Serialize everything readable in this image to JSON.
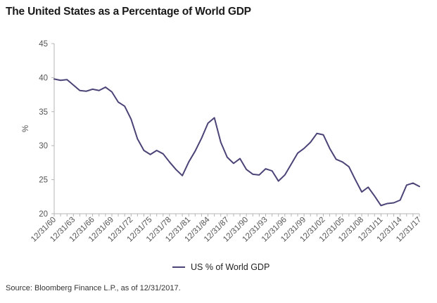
{
  "chart_data": {
    "type": "line",
    "title": "The United States as a Percentage of World GDP",
    "source": "Source: Bloomberg Finance L.P., as of 12/31/2017.",
    "xlabel": "",
    "ylabel": "%",
    "ylim": [
      20,
      45
    ],
    "yticks": [
      20,
      25,
      30,
      35,
      40,
      45
    ],
    "grid": false,
    "legend_position": "bottom-center",
    "x_tick_labels": [
      "12/31/60",
      "12/31/63",
      "12/31/66",
      "12/31/69",
      "12/31/72",
      "12/31/75",
      "12/31/78",
      "12/31/81",
      "12/31/84",
      "12/31/87",
      "12/31/90",
      "12/31/93",
      "12/31/96",
      "12/31/99",
      "12/31/02",
      "12/31/05",
      "12/31/08",
      "12/31/11",
      "12/31/14",
      "12/31/17"
    ],
    "x": [
      1960,
      1961,
      1962,
      1963,
      1964,
      1965,
      1966,
      1967,
      1968,
      1969,
      1970,
      1971,
      1972,
      1973,
      1974,
      1975,
      1976,
      1977,
      1978,
      1979,
      1980,
      1981,
      1982,
      1983,
      1984,
      1985,
      1986,
      1987,
      1988,
      1989,
      1990,
      1991,
      1992,
      1993,
      1994,
      1995,
      1996,
      1997,
      1998,
      1999,
      2000,
      2001,
      2002,
      2003,
      2004,
      2005,
      2006,
      2007,
      2008,
      2009,
      2010,
      2011,
      2012,
      2013,
      2014,
      2015,
      2016,
      2017
    ],
    "series": [
      {
        "name": "US % of World GDP",
        "color": "#4a4477",
        "values": [
          39.8,
          39.6,
          39.7,
          38.9,
          38.1,
          38.0,
          38.3,
          38.1,
          38.6,
          37.9,
          36.4,
          35.8,
          33.9,
          31.0,
          29.3,
          28.7,
          29.3,
          28.8,
          27.6,
          26.5,
          25.6,
          27.6,
          29.2,
          31.1,
          33.3,
          34.1,
          30.5,
          28.3,
          27.4,
          28.1,
          26.5,
          25.8,
          25.7,
          26.6,
          26.3,
          24.8,
          25.7,
          27.3,
          28.9,
          29.6,
          30.5,
          31.8,
          31.6,
          29.6,
          28.0,
          27.6,
          26.9,
          25.0,
          23.2,
          23.9,
          22.6,
          21.2,
          21.5,
          21.6,
          22.0,
          24.2,
          24.5,
          24.0
        ]
      }
    ]
  }
}
